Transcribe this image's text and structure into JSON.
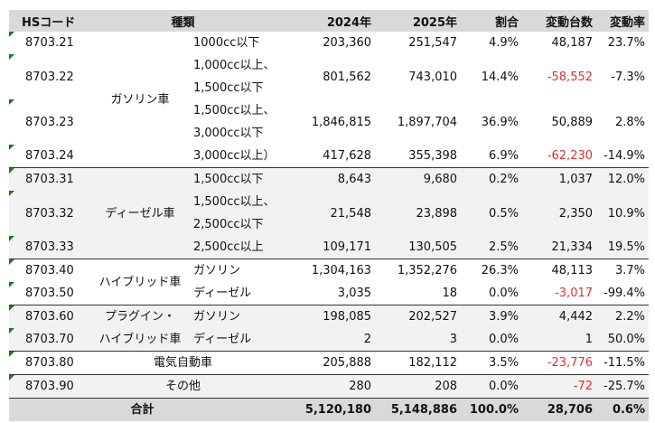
{
  "header": [
    "HSコード",
    "種類",
    "2024年",
    "2025年",
    "割合",
    "変動台数",
    "変動率"
  ],
  "groups": [
    {
      "label": [
        "ガソリン車"
      ],
      "rows": [
        {
          "hs": "8703.21",
          "type": [
            "1000cc以下"
          ],
          "cells": [
            "203,360",
            "251,547",
            "4.9%",
            "48,187",
            "23.7%"
          ]
        },
        {
          "hs": "8703.22",
          "type": [
            "1,000cc以上、",
            "1,500cc以下"
          ],
          "cells": [
            "801,562",
            "743,010",
            "14.4%",
            "-58,552",
            "-7.3%"
          ]
        },
        {
          "hs": "8703.23",
          "type": [
            "1,500cc以上、",
            "3,000cc以下"
          ],
          "cells": [
            "1,846,815",
            "1,897,704",
            "36.9%",
            "50,889",
            "2.8%"
          ]
        },
        {
          "hs": "8703.24",
          "type": [
            "3,000cc以上）"
          ],
          "cells": [
            "417,628",
            "355,398",
            "6.9%",
            "-62,230",
            "-14.9%"
          ]
        }
      ]
    },
    {
      "label": [
        "ディーゼル車"
      ],
      "rows": [
        {
          "hs": "8703.31",
          "type": [
            "1,500cc以下"
          ],
          "cells": [
            "8,643",
            "9,680",
            "0.2%",
            "1,037",
            "12.0%"
          ]
        },
        {
          "hs": "8703.32",
          "type": [
            "1,500cc以上、",
            "2,500cc以下"
          ],
          "cells": [
            "21,548",
            "23,898",
            "0.5%",
            "2,350",
            "10.9%"
          ]
        },
        {
          "hs": "8703.33",
          "type": [
            "2,500cc以上"
          ],
          "cells": [
            "109,171",
            "130,505",
            "2.5%",
            "21,334",
            "19.5%"
          ]
        }
      ]
    },
    {
      "label": [
        "ハイブリッド車"
      ],
      "rows": [
        {
          "hs": "8703.40",
          "type": [
            "ガソリン"
          ],
          "cells": [
            "1,304,163",
            "1,352,276",
            "26.3%",
            "48,113",
            "3.7%"
          ]
        },
        {
          "hs": "8703.50",
          "type": [
            "ディーゼル"
          ],
          "cells": [
            "3,035",
            "18",
            "0.0%",
            "-3,017",
            "-99.4%"
          ]
        }
      ]
    },
    {
      "label": [
        "プラグイン・",
        "ハイブリッド車"
      ],
      "rows": [
        {
          "hs": "8703.60",
          "type": [
            "ガソリン"
          ],
          "cells": [
            "198,085",
            "202,527",
            "3.9%",
            "4,442",
            "2.2%"
          ]
        },
        {
          "hs": "8703.70",
          "type": [
            "ディーゼル"
          ],
          "cells": [
            "2",
            "3",
            "0.0%",
            "1",
            "50.0%"
          ]
        }
      ]
    },
    {
      "label": [
        "電気自動車"
      ],
      "rows": [
        {
          "hs": "8703.80",
          "cells": [
            "205,888",
            "182,112",
            "3.5%",
            "-23,776",
            "-11.5%"
          ]
        }
      ]
    },
    {
      "label": [
        "その他"
      ],
      "rows": [
        {
          "hs": "8703.90",
          "cells": [
            "280",
            "208",
            "0.0%",
            "-72",
            "-25.7%"
          ]
        }
      ]
    }
  ],
  "total": {
    "label": "合計",
    "cells": [
      "5,120,180",
      "5,148,886",
      "100.0%",
      "28,706",
      "0.6%"
    ]
  }
}
